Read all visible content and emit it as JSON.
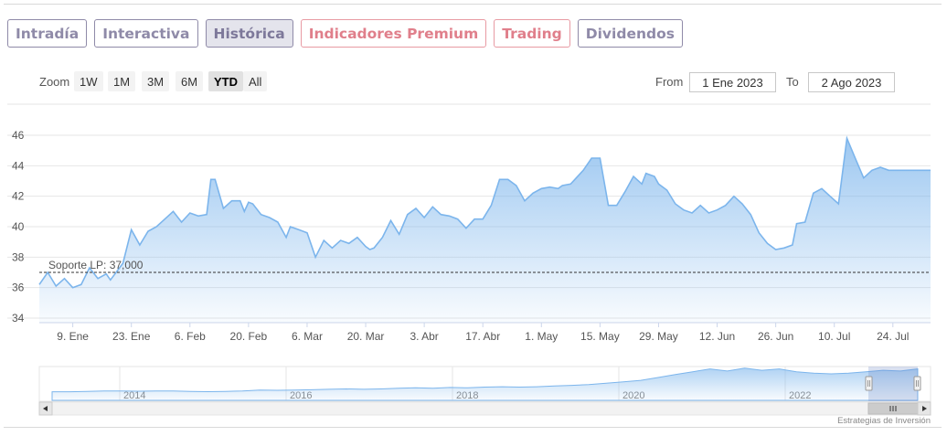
{
  "tabs": [
    {
      "label": "Intradía",
      "style": "normal"
    },
    {
      "label": "Interactiva",
      "style": "normal"
    },
    {
      "label": "Histórica",
      "style": "active"
    },
    {
      "label": "Indicadores Premium",
      "style": "premium"
    },
    {
      "label": "Trading",
      "style": "premium"
    },
    {
      "label": "Dividendos",
      "style": "normal"
    }
  ],
  "zoom": {
    "label": "Zoom",
    "buttons": [
      "1W",
      "1M",
      "3M",
      "6M",
      "YTD",
      "All"
    ],
    "active": "YTD"
  },
  "range": {
    "from_label": "From",
    "from_value": "1 Ene 2023",
    "to_label": "To",
    "to_value": "2 Ago 2023"
  },
  "credit": "Estrategias de Inversión",
  "colors": {
    "line": "#7cb5ec",
    "area_top": "#7cb5ec",
    "tab_border": "#8f8aa8",
    "premium": "#e07f8b",
    "support_line": "#333333"
  },
  "chart_data": {
    "type": "area",
    "title": "",
    "xlabel": "",
    "ylabel": "",
    "ylim": [
      34,
      46
    ],
    "y_ticks": [
      34,
      36,
      38,
      40,
      42,
      44,
      46
    ],
    "grid": true,
    "x_tick_labels": [
      "9. Ene",
      "23. Ene",
      "6. Feb",
      "20. Feb",
      "6. Mar",
      "20. Mar",
      "3. Abr",
      "17. Abr",
      "1. May",
      "15. May",
      "29. May",
      "12. Jun",
      "26. Jun",
      "10. Jul",
      "24. Jul"
    ],
    "x_ticks_day": [
      8,
      22,
      36,
      50,
      64,
      78,
      92,
      106,
      120,
      134,
      148,
      162,
      176,
      190,
      204
    ],
    "x_range_day": [
      0,
      213
    ],
    "x_unit": "day of 2023 (1 = 1 Ene)",
    "series": [
      {
        "x": [
          0,
          2,
          4,
          6,
          8,
          10,
          12,
          14,
          16,
          17,
          20,
          22,
          24,
          26,
          28,
          30,
          32,
          34,
          36,
          38,
          40,
          41,
          42,
          44,
          46,
          48,
          49,
          50,
          51,
          53,
          55,
          57,
          59,
          60,
          62,
          64,
          66,
          68,
          70,
          72,
          74,
          76,
          78,
          79,
          80,
          82,
          84,
          86,
          88,
          90,
          92,
          94,
          96,
          98,
          100,
          102,
          104,
          106,
          108,
          110,
          112,
          114,
          116,
          118,
          120,
          122,
          124,
          125,
          127,
          128,
          130,
          132,
          134,
          136,
          138,
          140,
          142,
          144,
          145,
          147,
          148,
          150,
          152,
          154,
          156,
          158,
          160,
          162,
          164,
          166,
          168,
          170,
          172,
          174,
          176,
          178,
          180,
          181,
          183,
          185,
          187,
          189,
          191,
          193,
          195,
          197,
          199,
          201,
          203,
          205,
          207,
          209,
          211,
          213
        ],
        "y": [
          36.2,
          37.0,
          36.1,
          36.6,
          36.0,
          36.2,
          37.3,
          36.6,
          36.9,
          36.5,
          37.6,
          39.8,
          38.8,
          39.7,
          40.0,
          40.5,
          41.0,
          40.3,
          40.9,
          40.7,
          40.8,
          43.1,
          43.1,
          41.2,
          41.7,
          41.7,
          41.0,
          41.6,
          41.5,
          40.8,
          40.6,
          40.3,
          39.3,
          40.0,
          39.8,
          39.6,
          38.0,
          39.1,
          38.6,
          39.1,
          38.9,
          39.3,
          38.7,
          38.5,
          38.6,
          39.3,
          40.4,
          39.5,
          40.8,
          41.2,
          40.6,
          41.3,
          40.8,
          40.7,
          40.5,
          39.9,
          40.5,
          40.5,
          41.4,
          43.1,
          43.1,
          42.7,
          41.7,
          42.2,
          42.5,
          42.6,
          42.5,
          42.7,
          42.8,
          43.1,
          43.7,
          44.5,
          44.5,
          41.4,
          41.4,
          42.3,
          43.3,
          42.8,
          43.5,
          43.3,
          42.8,
          42.4,
          41.5,
          41.1,
          40.9,
          41.4,
          40.9,
          41.1,
          41.4,
          42.0,
          41.5,
          40.8,
          39.6,
          38.9,
          38.5,
          38.6,
          38.8,
          40.2,
          40.3,
          42.2,
          42.5,
          42.0,
          41.5,
          45.8,
          44.5,
          43.2,
          43.7,
          43.9,
          43.7,
          43.7,
          43.7,
          43.7,
          43.7,
          43.7
        ],
        "name": ""
      }
    ],
    "annotation": {
      "label": "Soporte LP: 37,000",
      "y": 37.0,
      "style": "dashed"
    },
    "navigator": {
      "year_labels": [
        "2014",
        "2016",
        "2018",
        "2020",
        "2022"
      ],
      "y_range": [
        0,
        46
      ],
      "values": [
        12,
        12,
        12.5,
        13,
        13,
        12.8,
        13.2,
        13,
        12.5,
        12.2,
        12.5,
        13,
        14.5,
        14,
        14.5,
        14.8,
        15.5,
        16,
        15.5,
        16,
        17,
        17.5,
        17,
        18,
        17.5,
        18.5,
        19,
        18.5,
        19,
        20,
        21,
        22,
        24,
        26,
        28,
        32,
        36,
        40,
        44,
        41,
        45,
        42,
        44,
        40,
        38,
        37,
        38,
        40,
        42,
        41,
        44
      ]
    }
  }
}
